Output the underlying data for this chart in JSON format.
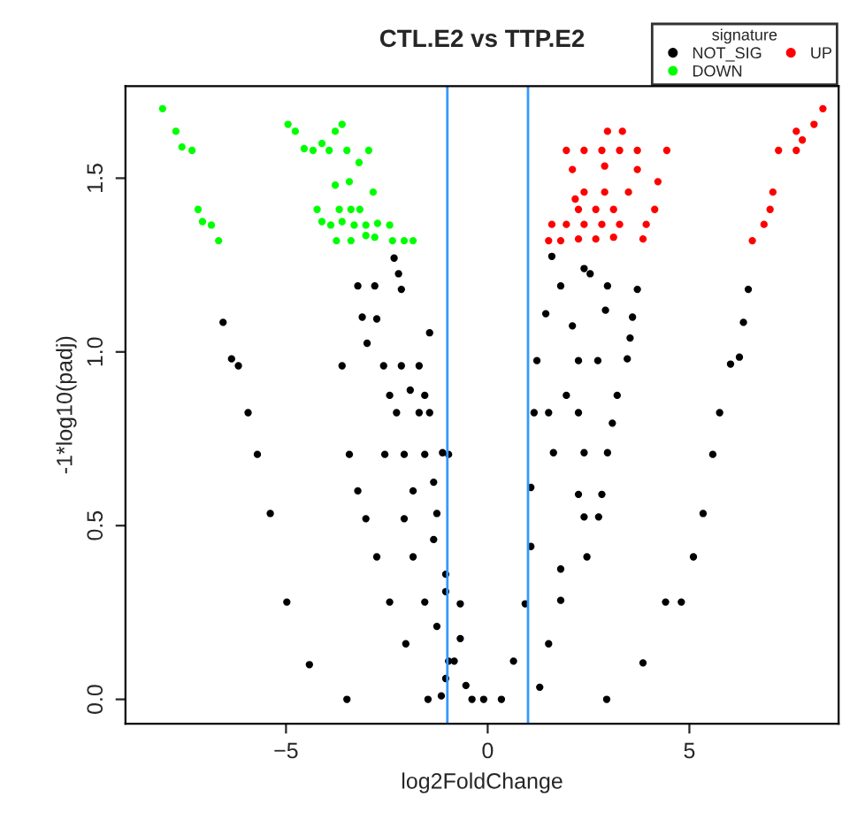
{
  "chart_data": {
    "type": "scatter",
    "title": "CTL.E2 vs TTP.E2",
    "xlabel": "log2FoldChange",
    "ylabel": "-1*log10(padj)",
    "legend_title": "signature",
    "legend": "top right",
    "marker": "circle",
    "grid": false,
    "xlim": [
      -8.98,
      8.7
    ],
    "xticks": [
      {
        "value": -5,
        "label": "−5"
      },
      {
        "value": 0,
        "label": "0"
      },
      {
        "value": 5,
        "label": "5"
      }
    ],
    "ylim": [
      -0.07,
      1.765
    ],
    "yticks": [
      {
        "value": 0,
        "label": "0.0"
      },
      {
        "value": 0.5,
        "label": "0.5"
      },
      {
        "value": 1,
        "label": "1.0"
      },
      {
        "value": 1.5,
        "label": "1.5"
      }
    ],
    "ref_lines": [
      {
        "axis": "x",
        "value": -1,
        "color": "#3399ff"
      },
      {
        "axis": "x",
        "value": 1,
        "color": "#3399ff"
      }
    ],
    "series": [
      {
        "name": "NOT_SIG",
        "color": "#000000",
        "x": [
          -6.56,
          -6.35,
          -6.18,
          -5.94,
          -5.71,
          -5.39,
          -4.98,
          -4.42,
          -3.49,
          -1.48,
          -1.15,
          -3.61,
          -3.43,
          -3.22,
          -3.02,
          -2.75,
          -2.43,
          -2.03,
          -3.22,
          -2.8,
          -3.11,
          -2.75,
          -2.99,
          -2.32,
          -2.21,
          -2.14,
          -2.58,
          -2.14,
          -1.7,
          -1.44,
          -2.43,
          -1.92,
          -1.56,
          -2.26,
          -1.7,
          -1.44,
          -2.55,
          -2.07,
          -1.56,
          -0.97,
          -1.85,
          -1.34,
          -2.07,
          -1.26,
          -1.85,
          -1.34,
          -1.56,
          -1.04,
          -1.26,
          -0.83,
          -0.39,
          -1.04,
          -0.68,
          -0.54,
          -0.1,
          -0.97,
          -1.04,
          -1.12,
          -0.68,
          0.34,
          0.64,
          0.93,
          1.07,
          1.07,
          1.15,
          1.22,
          1.44,
          1.59,
          1.81,
          2.39,
          2.25,
          2.39,
          2.25,
          2.39,
          2.46,
          1.81,
          1.51,
          1.29,
          2.95,
          3.85,
          4.41,
          4.8,
          5.1,
          5.34,
          5.58,
          5.75,
          6.02,
          6.24,
          6.34,
          6.46,
          2.97,
          3.71,
          2.92,
          3.59,
          3.53,
          3.46,
          2.73,
          3.21,
          3.09,
          2.97,
          2.83,
          2.75,
          1.81,
          1.63,
          1.95,
          2.1,
          2.25,
          1.51,
          2.54
        ],
        "values": [
          1.085,
          0.98,
          0.96,
          0.825,
          0.705,
          0.535,
          0.28,
          0.1,
          0.0,
          0.0,
          0.01,
          0.96,
          0.705,
          0.6,
          0.52,
          0.41,
          0.28,
          0.16,
          1.19,
          1.19,
          1.1,
          1.095,
          1.025,
          1.27,
          1.225,
          1.18,
          0.96,
          0.96,
          0.96,
          1.055,
          0.875,
          0.89,
          0.875,
          0.825,
          0.825,
          0.825,
          0.705,
          0.705,
          0.705,
          0.705,
          0.6,
          0.625,
          0.52,
          0.535,
          0.41,
          0.46,
          0.28,
          0.31,
          0.21,
          0.11,
          0.0,
          0.06,
          0.175,
          0.04,
          0.0,
          0.11,
          0.36,
          0.71,
          0.275,
          0.0,
          0.11,
          0.275,
          0.44,
          0.61,
          0.825,
          0.975,
          1.11,
          1.275,
          1.19,
          1.24,
          0.825,
          0.71,
          0.59,
          0.525,
          0.41,
          0.285,
          0.16,
          0.035,
          0.0,
          0.105,
          0.28,
          0.28,
          0.41,
          0.535,
          0.705,
          0.825,
          0.965,
          0.985,
          1.085,
          1.18,
          1.19,
          1.18,
          1.12,
          1.1,
          1.04,
          0.98,
          0.975,
          0.875,
          0.795,
          0.71,
          0.59,
          0.525,
          0.375,
          0.71,
          0.875,
          1.075,
          0.975,
          0.825,
          1.225
        ]
      },
      {
        "name": "DOWN",
        "color": "#00ff00",
        "x": [
          -8.06,
          -7.73,
          -7.58,
          -7.33,
          -7.18,
          -7.07,
          -6.85,
          -6.67,
          -4.95,
          -4.77,
          -4.55,
          -4.33,
          -4.11,
          -3.93,
          -3.78,
          -3.61,
          -3.49,
          -3.19,
          -2.95,
          -3.78,
          -3.43,
          -2.84,
          -4.23,
          -3.68,
          -3.39,
          -3.17,
          -4.11,
          -3.89,
          -3.61,
          -3.31,
          -3.02,
          -2.73,
          -2.43,
          -3.75,
          -3.39,
          -3.02,
          -2.8,
          -2.36,
          -2.07,
          -1.85
        ],
        "values": [
          1.7,
          1.635,
          1.59,
          1.58,
          1.41,
          1.375,
          1.365,
          1.32,
          1.655,
          1.635,
          1.585,
          1.58,
          1.6,
          1.58,
          1.635,
          1.655,
          1.58,
          1.545,
          1.58,
          1.48,
          1.49,
          1.46,
          1.41,
          1.41,
          1.41,
          1.41,
          1.375,
          1.365,
          1.375,
          1.365,
          1.365,
          1.37,
          1.365,
          1.32,
          1.32,
          1.335,
          1.33,
          1.32,
          1.32,
          1.32
        ]
      },
      {
        "name": "UP",
        "color": "#ff0000",
        "x": [
          1.51,
          1.81,
          2.25,
          2.68,
          3.12,
          3.85,
          1.59,
          1.95,
          2.39,
          2.83,
          3.27,
          3.93,
          2.25,
          2.68,
          3.12,
          4.14,
          2.17,
          2.39,
          2.9,
          3.49,
          4.22,
          2.1,
          2.9,
          3.71,
          1.95,
          2.39,
          2.83,
          3.27,
          3.71,
          4.44,
          2.97,
          3.34,
          7.07,
          7.0,
          6.85,
          6.56,
          7.21,
          7.65,
          7.8,
          8.09,
          7.65,
          8.31
        ],
        "values": [
          1.32,
          1.32,
          1.325,
          1.325,
          1.33,
          1.325,
          1.367,
          1.367,
          1.367,
          1.367,
          1.367,
          1.367,
          1.41,
          1.41,
          1.41,
          1.41,
          1.44,
          1.46,
          1.46,
          1.46,
          1.49,
          1.525,
          1.535,
          1.525,
          1.58,
          1.58,
          1.58,
          1.58,
          1.58,
          1.58,
          1.635,
          1.635,
          1.46,
          1.41,
          1.367,
          1.32,
          1.58,
          1.58,
          1.61,
          1.655,
          1.635,
          1.7
        ]
      }
    ]
  }
}
